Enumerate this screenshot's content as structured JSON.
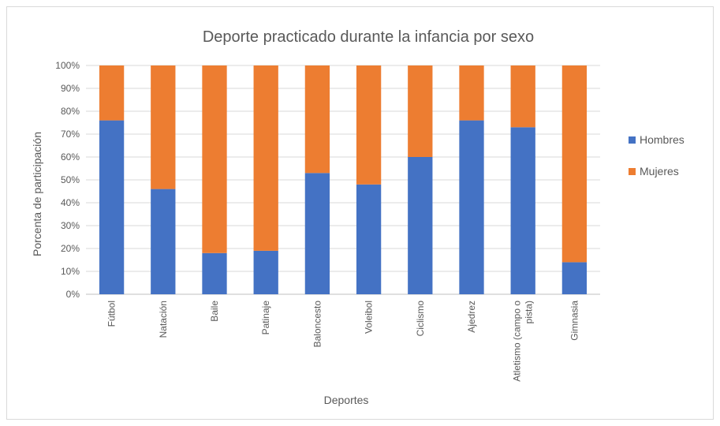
{
  "chart_data": {
    "type": "bar",
    "stacked": "percent",
    "title": "Deporte practicado durante la infancia por sexo",
    "xlabel": "Deportes",
    "ylabel": "Porcenta de participación",
    "categories": [
      "Fútbol",
      "Natación",
      "Baile",
      "Patinaje",
      "Baloncesto",
      "Voleibol",
      "Ciclismo",
      "Ajedrez",
      "Atletismo (campo o pista)",
      "Gimnasia"
    ],
    "category_lines": [
      [
        "Fútbol"
      ],
      [
        "Natación"
      ],
      [
        "Baile"
      ],
      [
        "Patinaje"
      ],
      [
        "Baloncesto"
      ],
      [
        "Voleibol"
      ],
      [
        "Ciclismo"
      ],
      [
        "Ajedrez"
      ],
      [
        "Atletismo (campo o",
        "pista)"
      ],
      [
        "Gimnasia"
      ]
    ],
    "series": [
      {
        "name": "Hombres",
        "color": "#4472c4",
        "values": [
          76,
          46,
          18,
          19,
          53,
          48,
          60,
          76,
          73,
          14
        ]
      },
      {
        "name": "Mujeres",
        "color": "#ed7d31",
        "values": [
          24,
          54,
          82,
          81,
          47,
          52,
          40,
          24,
          27,
          86
        ]
      }
    ],
    "ylim": [
      0,
      100
    ],
    "yticks": [
      "0%",
      "10%",
      "20%",
      "30%",
      "40%",
      "50%",
      "60%",
      "70%",
      "80%",
      "90%",
      "100%"
    ],
    "grid": true,
    "legend_position": "right"
  }
}
